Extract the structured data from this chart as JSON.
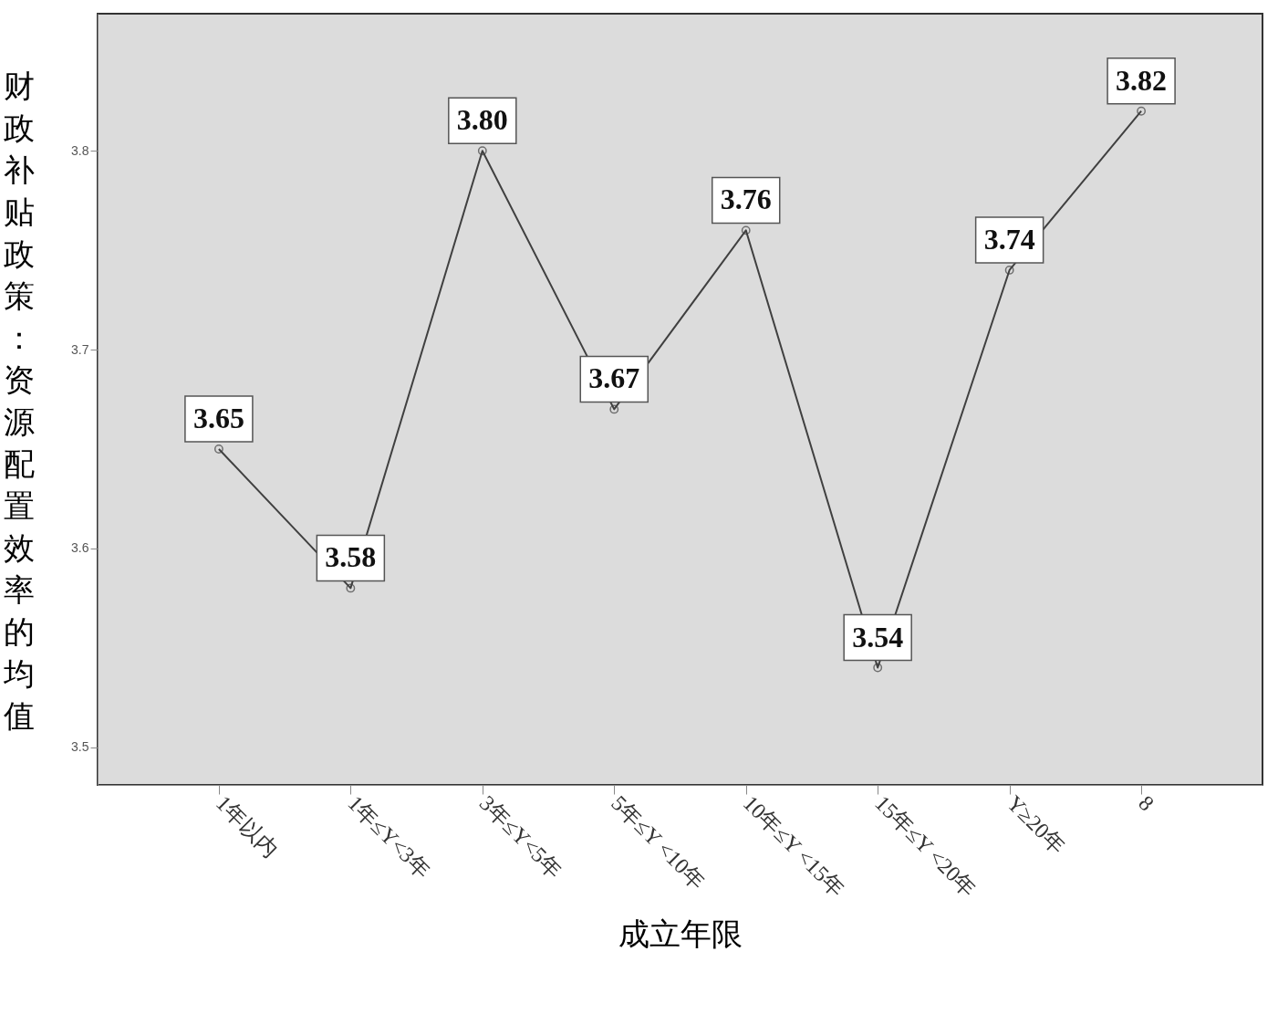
{
  "chart_data": {
    "type": "line",
    "xlabel": "成立年限",
    "ylabel": "财政补贴政策：资源配置效率的均值",
    "categories": [
      "1年以内",
      "1年≤Y<3年",
      "3年≤Y<5年",
      "5年≤Y <10年",
      "10年≤Y <15年",
      "15年≤Y <20年",
      "Y≥20年",
      "8"
    ],
    "series": [
      {
        "color": "#404040",
        "values": [
          3.65,
          3.58,
          3.8,
          3.67,
          3.76,
          3.54,
          3.74,
          3.82
        ]
      }
    ],
    "ylim": [
      3.481,
      3.869
    ],
    "yticks": [
      3.5,
      3.6,
      3.7,
      3.8
    ],
    "value_labels": [
      "3.65",
      "3.58",
      "3.80",
      "3.67",
      "3.76",
      "3.54",
      "3.74",
      "3.82"
    ],
    "marker": "circle",
    "line_style": "solid",
    "grid": false
  }
}
